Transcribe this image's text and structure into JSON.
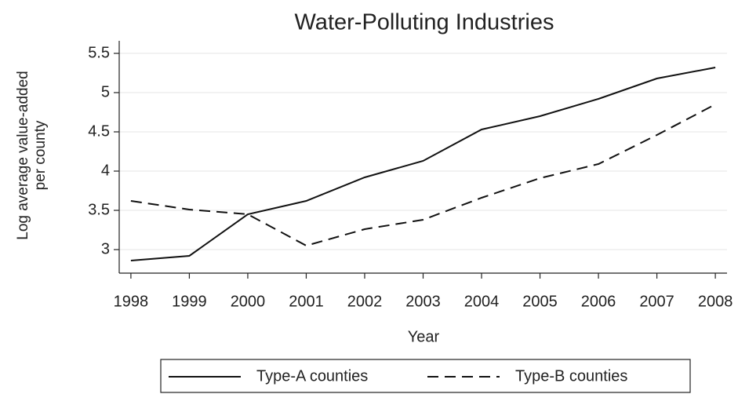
{
  "chart_data": {
    "type": "line",
    "title": "Water-Polluting Industries",
    "xlabel": "Year",
    "ylabel": [
      "Log average value-added",
      "per county"
    ],
    "x": [
      1998,
      1999,
      2000,
      2001,
      2002,
      2003,
      2004,
      2005,
      2006,
      2007,
      2008
    ],
    "series": [
      {
        "name": "Type-A counties",
        "color": "#111111",
        "dash": "solid",
        "values": [
          2.86,
          2.92,
          3.45,
          3.62,
          3.92,
          4.13,
          4.53,
          4.7,
          4.92,
          5.18,
          5.32
        ]
      },
      {
        "name": "Type-B counties",
        "color": "#111111",
        "dash": "dashed",
        "values": [
          3.62,
          3.51,
          3.45,
          3.05,
          3.26,
          3.38,
          3.66,
          3.91,
          4.09,
          4.46,
          4.85
        ]
      }
    ],
    "xlim": [
      1997.8,
      2008.2
    ],
    "xticks": [
      1998,
      1999,
      2000,
      2001,
      2002,
      2003,
      2004,
      2005,
      2006,
      2007,
      2008
    ],
    "ylim": [
      2.7,
      5.66
    ],
    "yticks": [
      3,
      3.5,
      4,
      4.5,
      5,
      5.5
    ],
    "grid": true,
    "legend": "bottom"
  }
}
